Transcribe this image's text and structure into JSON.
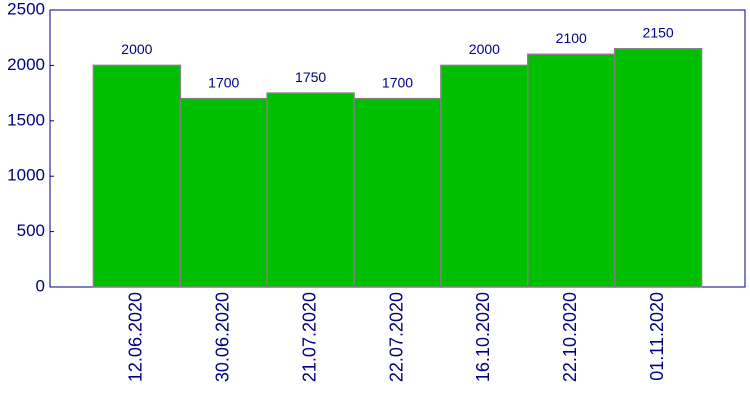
{
  "chart_data": {
    "type": "bar",
    "categories": [
      "12.06.2020",
      "30.06.2020",
      "21.07.2020",
      "22.07.2020",
      "16.10.2020",
      "22.10.2020",
      "01.11.2020"
    ],
    "values": [
      2000,
      1700,
      1750,
      1700,
      2000,
      2100,
      2150
    ],
    "color": "#00bf00",
    "ylim": [
      0,
      2500
    ],
    "yticks": [
      0,
      500,
      1000,
      1500,
      2000,
      2500
    ],
    "grid": false
  }
}
